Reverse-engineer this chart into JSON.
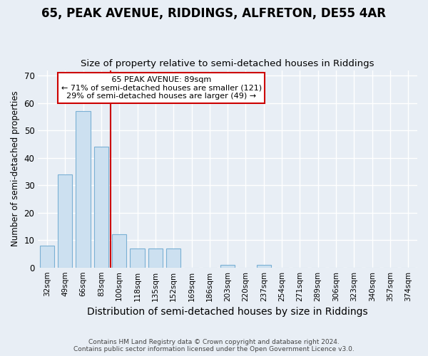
{
  "title": "65, PEAK AVENUE, RIDDINGS, ALFRETON, DE55 4AR",
  "subtitle": "Size of property relative to semi-detached houses in Riddings",
  "xlabel": "Distribution of semi-detached houses by size in Riddings",
  "ylabel": "Number of semi-detached properties",
  "footer1": "Contains HM Land Registry data © Crown copyright and database right 2024.",
  "footer2": "Contains public sector information licensed under the Open Government Licence v3.0.",
  "categories": [
    "32sqm",
    "49sqm",
    "66sqm",
    "83sqm",
    "100sqm",
    "118sqm",
    "135sqm",
    "152sqm",
    "169sqm",
    "186sqm",
    "203sqm",
    "220sqm",
    "237sqm",
    "254sqm",
    "271sqm",
    "289sqm",
    "306sqm",
    "323sqm",
    "340sqm",
    "357sqm",
    "374sqm"
  ],
  "values": [
    8,
    34,
    57,
    44,
    12,
    7,
    7,
    7,
    0,
    0,
    1,
    0,
    1,
    0,
    0,
    0,
    0,
    0,
    0,
    0,
    0
  ],
  "bar_color": "#cce0f0",
  "bar_edge_color": "#7ab0d4",
  "ylim": [
    0,
    72
  ],
  "yticks": [
    0,
    10,
    20,
    30,
    40,
    50,
    60,
    70
  ],
  "red_line_x": 3.5,
  "annotation_title": "65 PEAK AVENUE: 89sqm",
  "annotation_line1": "← 71% of semi-detached houses are smaller (121)",
  "annotation_line2": "29% of semi-detached houses are larger (49) →",
  "red_line_color": "#cc0000",
  "annotation_box_color": "#ffffff",
  "annotation_box_edge": "#cc0000",
  "bg_color": "#e8eef5",
  "plot_bg_color": "#e8eef5",
  "title_fontsize": 12,
  "subtitle_fontsize": 9.5,
  "ylabel_fontsize": 8.5,
  "xlabel_fontsize": 10
}
